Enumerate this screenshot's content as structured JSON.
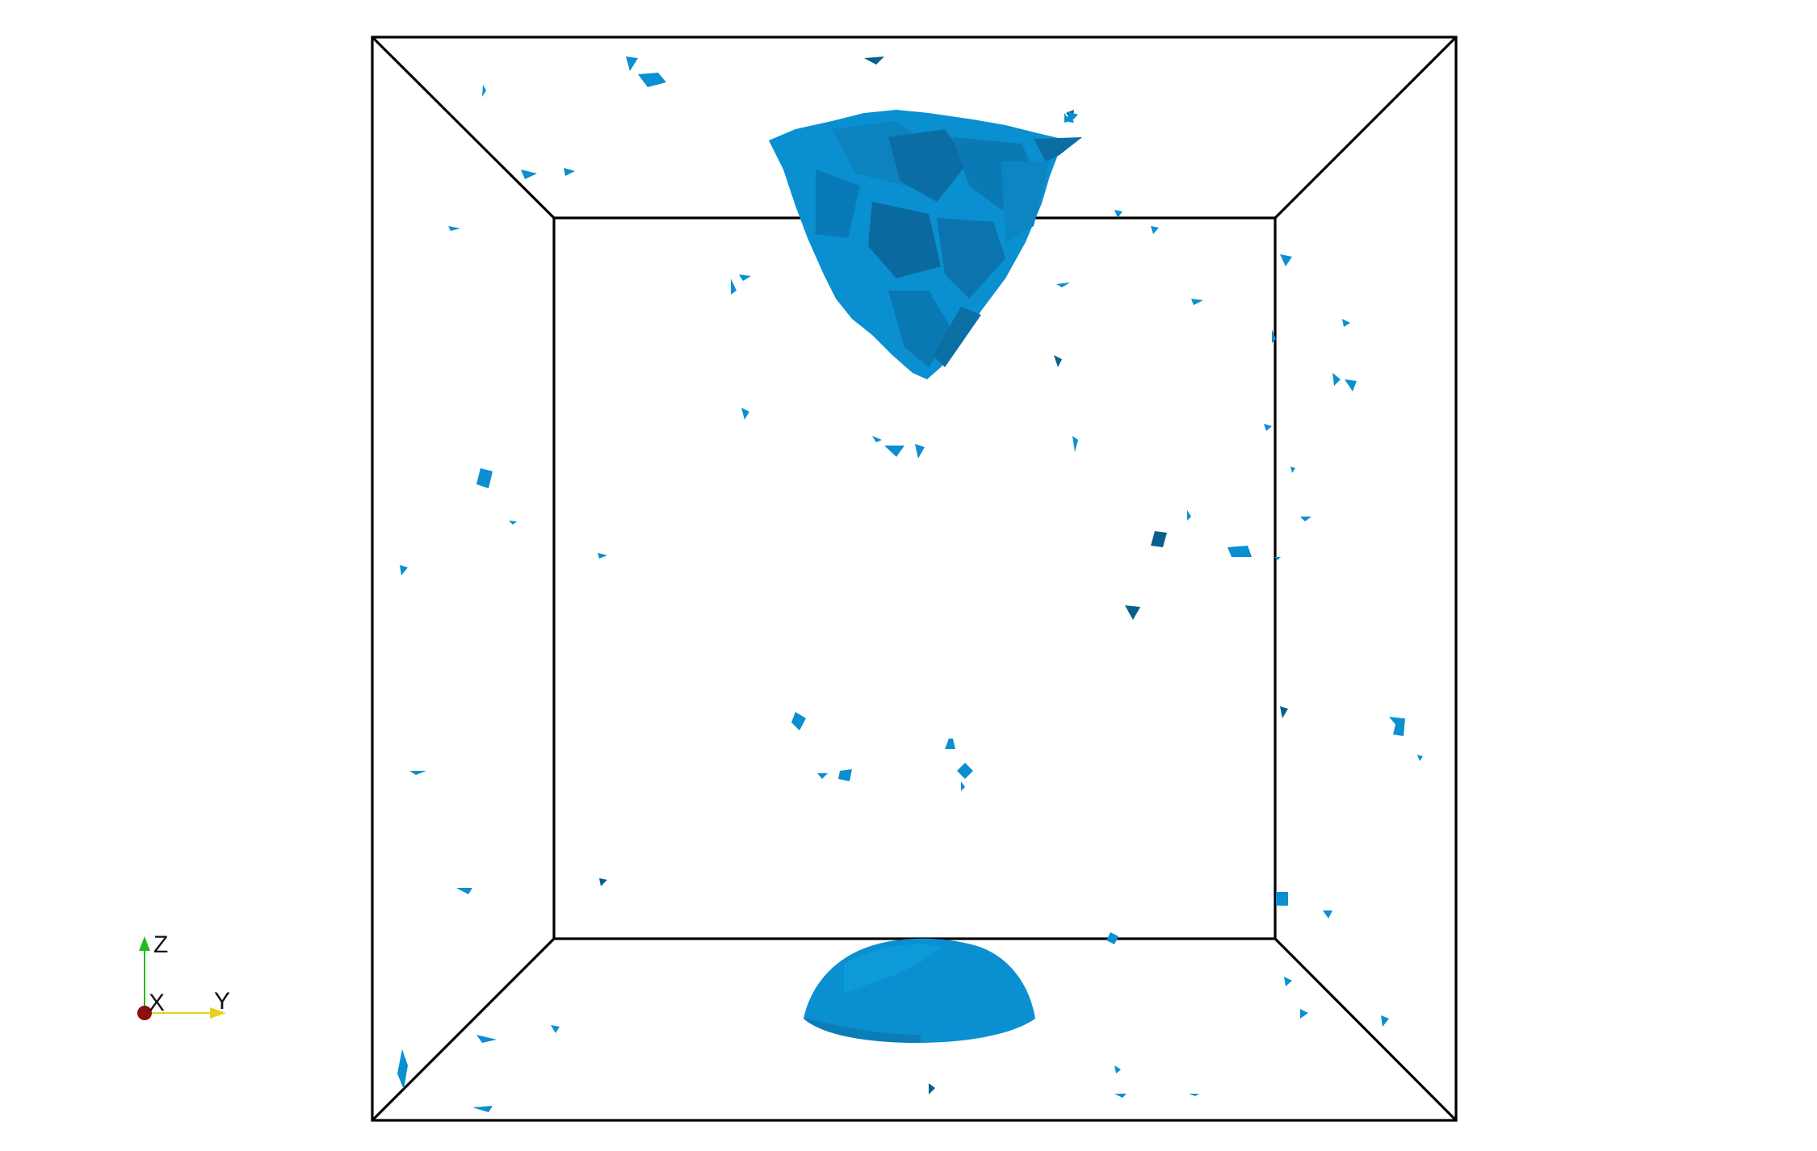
{
  "scene": {
    "background_color": "#ffffff",
    "box_edge_color": "#000000",
    "surface_color": "#0a90d2",
    "surface_shadow_color": "#085f8e",
    "surface_highlight_color": "#13a6e8"
  },
  "orientation_axes": {
    "z_label": "Z",
    "x_label": "X",
    "y_label": "Y",
    "z_color": "#22bb22",
    "x_color": "#8b1010",
    "y_color": "#e6d21e"
  }
}
